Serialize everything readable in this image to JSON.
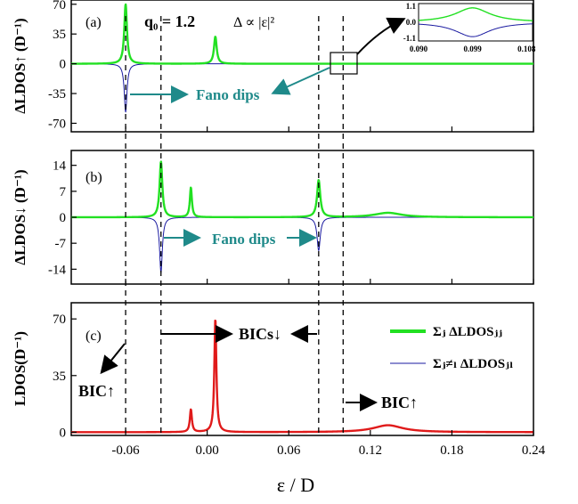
{
  "chart_data": {
    "type": "line",
    "xlabel": "ε / D",
    "xlim": [
      -0.1,
      0.24
    ],
    "xticks": [
      "-0.06",
      "0.00",
      "0.06",
      "0.12",
      "0.18",
      "0.24"
    ],
    "xtick_values": [
      -0.06,
      0.0,
      0.06,
      0.12,
      0.18,
      0.24
    ],
    "colors": {
      "green": "#22e022",
      "blue": "#1a1aa0",
      "red": "#e01a1a",
      "teal": "#1f8a8a"
    },
    "vlines": [
      -0.06,
      -0.034,
      0.082,
      0.1
    ],
    "panels": [
      {
        "label": "(a)",
        "ylabel": "ΔLDOS↑ (D⁻¹)",
        "ylim": [
          -80,
          75
        ],
        "yticks": [
          "70",
          "35",
          "0",
          "-35",
          "-70"
        ],
        "ytick_values": [
          70,
          35,
          0,
          -35,
          -70
        ],
        "annotation_q": "q₀ = 1.2",
        "annotation_delta": "Δ ∝ |ε|²",
        "fano_label": "Fano dips",
        "series": [
          {
            "color": "green",
            "peaks": [
              [
                -0.06,
                70,
                0.0012
              ],
              [
                0.006,
                32,
                0.0012
              ]
            ]
          },
          {
            "color": "blue",
            "peaks": [
              [
                -0.06,
                -57,
                0.0012
              ]
            ]
          }
        ],
        "inset": {
          "xlim": [
            0.09,
            0.109
          ],
          "ylim": [
            -1.3,
            1.3
          ],
          "xticks": [
            "0.090",
            "0.099",
            "0.108"
          ],
          "xtick_values": [
            0.09,
            0.099,
            0.108
          ],
          "yticks": [
            "1.1",
            "0.0",
            "-1.1"
          ],
          "ytick_values": [
            1.1,
            0.0,
            -1.1
          ],
          "green_peak": [
            0.099,
            1.0,
            0.0035
          ],
          "blue_dip": [
            0.099,
            -1.0,
            0.0035
          ]
        }
      },
      {
        "label": "(b)",
        "ylabel": "ΔLDOS↓ (D⁻¹)",
        "ylim": [
          -18,
          18
        ],
        "yticks": [
          "14",
          "7",
          "0",
          "-7",
          "-14"
        ],
        "ytick_values": [
          14,
          7,
          0,
          -7,
          -14
        ],
        "fano_label": "Fano dips",
        "series": [
          {
            "color": "green",
            "peaks": [
              [
                -0.034,
                15,
                0.0012
              ],
              [
                -0.012,
                8,
                0.0009
              ],
              [
                0.082,
                10,
                0.0014
              ],
              [
                0.133,
                1.2,
                0.012
              ]
            ]
          },
          {
            "color": "blue",
            "peaks": [
              [
                -0.034,
                -15,
                0.0012
              ],
              [
                0.082,
                -9,
                0.0014
              ]
            ]
          }
        ]
      },
      {
        "label": "(c)",
        "ylabel": "LDOS(D⁻¹)",
        "ylim": [
          -2,
          80
        ],
        "yticks": [
          "70",
          "35",
          "0"
        ],
        "ytick_values": [
          70,
          35,
          0
        ],
        "series": [
          {
            "color": "red",
            "peaks": [
              [
                -0.012,
                14,
                0.0009
              ],
              [
                0.006,
                70,
                0.0009
              ],
              [
                0.133,
                4.3,
                0.013
              ]
            ]
          }
        ],
        "annotations": {
          "bic_up_left": "BIC↑",
          "bics_down": "BICs↓",
          "bic_up_right": "BIC↑"
        },
        "legend": [
          {
            "label": "Σⱼ ΔLDOSⱼⱼ",
            "color": "green"
          },
          {
            "label": "Σⱼ≠ₗ ΔLDOSⱼₗ",
            "color": "blue"
          }
        ]
      }
    ]
  }
}
